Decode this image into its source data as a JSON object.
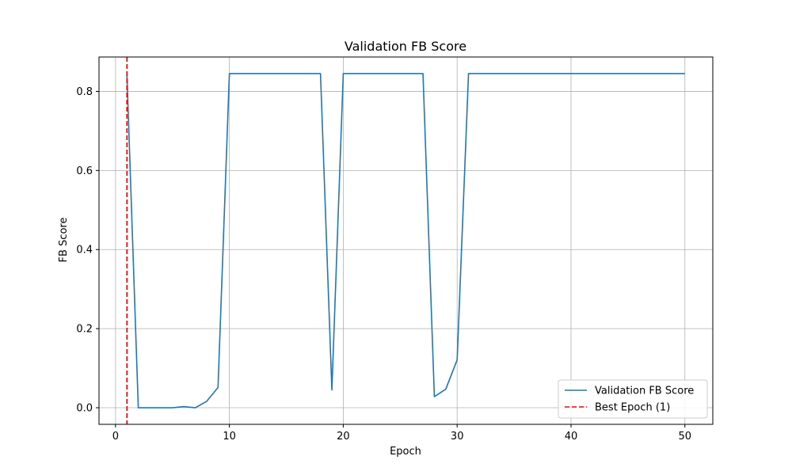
{
  "chart_data": {
    "type": "line",
    "title": "Validation FB Score",
    "xlabel": "Epoch",
    "ylabel": "FB Score",
    "xlim": [
      -1.45,
      52.45
    ],
    "ylim": [
      -0.042,
      0.887
    ],
    "xticks": [
      0,
      10,
      20,
      30,
      40,
      50
    ],
    "yticks": [
      0.0,
      0.2,
      0.4,
      0.6,
      0.8
    ],
    "xtick_labels": [
      "0",
      "10",
      "20",
      "30",
      "40",
      "50"
    ],
    "ytick_labels": [
      "0.0",
      "0.2",
      "0.4",
      "0.6",
      "0.8"
    ],
    "grid": true,
    "legend_position": "lower-right",
    "series": [
      {
        "name": "Validation FB Score",
        "color": "#1f77b4",
        "style": "solid",
        "x": [
          1,
          2,
          3,
          4,
          5,
          6,
          7,
          8,
          9,
          10,
          11,
          12,
          13,
          14,
          15,
          16,
          17,
          18,
          19,
          20,
          21,
          22,
          23,
          24,
          25,
          26,
          27,
          28,
          29,
          30,
          31,
          32,
          33,
          34,
          35,
          36,
          37,
          38,
          39,
          40,
          41,
          42,
          43,
          44,
          45,
          46,
          47,
          48,
          49,
          50
        ],
        "y": [
          0.845,
          0.0,
          0.0,
          0.0,
          0.0,
          0.003,
          0.0,
          0.016,
          0.051,
          0.845,
          0.845,
          0.845,
          0.845,
          0.845,
          0.845,
          0.845,
          0.845,
          0.845,
          0.045,
          0.845,
          0.845,
          0.845,
          0.845,
          0.845,
          0.845,
          0.845,
          0.845,
          0.028,
          0.047,
          0.121,
          0.845,
          0.845,
          0.845,
          0.845,
          0.845,
          0.845,
          0.845,
          0.845,
          0.845,
          0.845,
          0.845,
          0.845,
          0.845,
          0.845,
          0.845,
          0.845,
          0.845,
          0.845,
          0.845,
          0.845
        ]
      }
    ],
    "reference_lines": [
      {
        "name": "Best Epoch (1)",
        "orientation": "vertical",
        "x": 1,
        "color": "#ff0000",
        "style": "dashed"
      }
    ]
  }
}
